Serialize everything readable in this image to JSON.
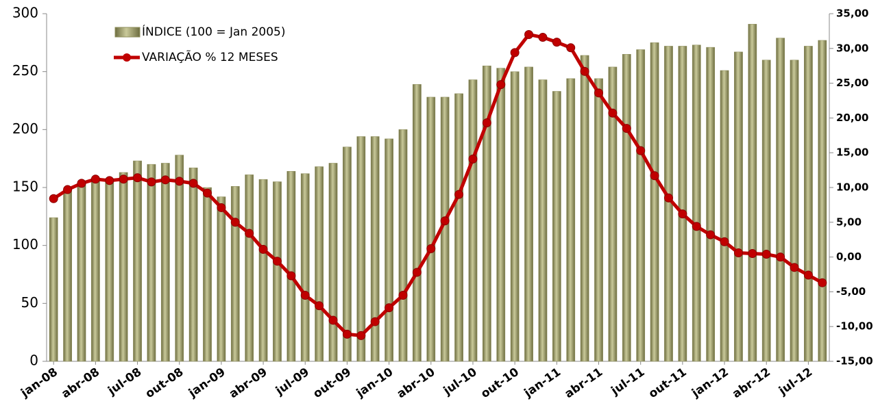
{
  "chart_data": {
    "type": "bar_line",
    "categories": [
      "jan-08",
      null,
      null,
      "abr-08",
      null,
      null,
      "jul-08",
      null,
      null,
      "out-08",
      null,
      null,
      "jan-09",
      null,
      null,
      "abr-09",
      null,
      null,
      "jul-09",
      null,
      null,
      "out-09",
      null,
      null,
      "jan-10",
      null,
      null,
      "abr-10",
      null,
      null,
      "jul-10",
      null,
      null,
      "out-10",
      null,
      null,
      "jan-11",
      null,
      null,
      "abr-11",
      null,
      null,
      "jul-11",
      null,
      null,
      "out-11",
      null,
      null,
      "jan-12",
      null,
      null,
      "abr-12",
      null,
      null,
      "jul-12",
      null
    ],
    "series": [
      {
        "name": "ÍNDICE (100 = Jan 2005)",
        "color": "#8f8f5c",
        "axis": "y",
        "values": [
          124,
          148,
          153,
          157,
          157,
          163,
          173,
          170,
          171,
          178,
          167,
          150,
          142,
          151,
          161,
          157,
          155,
          164,
          162,
          168,
          171,
          185,
          194,
          194,
          192,
          200,
          239,
          228,
          228,
          231,
          243,
          255,
          253,
          250,
          254,
          243,
          233,
          244,
          264,
          244,
          254,
          265,
          269,
          275,
          272,
          272,
          273,
          271,
          251,
          267,
          291,
          260,
          279,
          260,
          272,
          277
        ]
      },
      {
        "name": "VARIAÇÃO % 12 MESES",
        "color": "#c00000",
        "axis": "y2",
        "values": [
          8.4,
          9.7,
          10.6,
          11.2,
          11.0,
          11.2,
          11.4,
          10.8,
          11.1,
          10.9,
          10.6,
          9.2,
          7.1,
          5.0,
          3.4,
          1.1,
          -0.6,
          -2.7,
          -5.5,
          -7.0,
          -9.1,
          -11.1,
          -11.3,
          -9.3,
          -7.3,
          -5.5,
          -2.2,
          1.2,
          5.2,
          9.0,
          14.1,
          19.3,
          24.8,
          29.4,
          32.0,
          31.6,
          30.9,
          30.1,
          26.7,
          23.6,
          20.7,
          18.5,
          15.3,
          11.7,
          8.5,
          6.2,
          4.4,
          3.2,
          2.2,
          0.6,
          0.5,
          0.4,
          0.0,
          -1.5,
          -2.6,
          -3.7
        ]
      }
    ],
    "ylim": [
      0,
      300
    ],
    "yticks": [
      0,
      50,
      100,
      150,
      200,
      250,
      300
    ],
    "y2lim": [
      -15,
      35
    ],
    "y2ticks": [
      {
        "value": -15,
        "label": "-15,00"
      },
      {
        "value": -10,
        "label": "-10,00"
      },
      {
        "value": -5,
        "label": "-5,00"
      },
      {
        "value": 0,
        "label": "0,00"
      },
      {
        "value": 5,
        "label": "5,00"
      },
      {
        "value": 10,
        "label": "10,00"
      },
      {
        "value": 15,
        "label": "15,00"
      },
      {
        "value": 20,
        "label": "20,00"
      },
      {
        "value": 25,
        "label": "25,00"
      },
      {
        "value": 30,
        "label": "30,00"
      },
      {
        "value": 35,
        "label": "35,00"
      }
    ],
    "grid": false
  }
}
